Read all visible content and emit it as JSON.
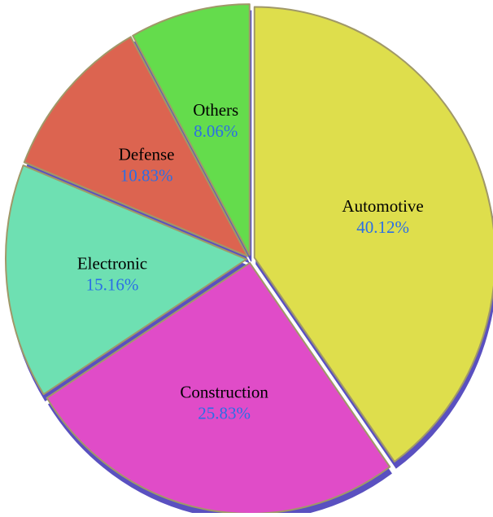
{
  "chart_data": {
    "type": "pie",
    "title": "",
    "slices": [
      {
        "label": "Automotive",
        "value": 40.12,
        "value_label": "40.12%",
        "color": "#dede4c"
      },
      {
        "label": "Construction",
        "value": 25.83,
        "value_label": "25.83%",
        "color": "#e04cc8"
      },
      {
        "label": "Electronic",
        "value": 15.16,
        "value_label": "15.16%",
        "color": "#6ee0b2"
      },
      {
        "label": "Defense",
        "value": 10.83,
        "value_label": "10.83%",
        "color": "#dc6450"
      },
      {
        "label": "Others",
        "value": 8.06,
        "value_label": "8.06%",
        "color": "#64dc4c"
      }
    ],
    "start_angle_deg": 90,
    "direction": "clockwise",
    "exploded": true,
    "style": "3d-tilted",
    "depth_color": "#5a50c0",
    "edge_color": "#a09868",
    "label_color": "#000000",
    "value_color": "#2a6ee6",
    "legend": "none"
  }
}
